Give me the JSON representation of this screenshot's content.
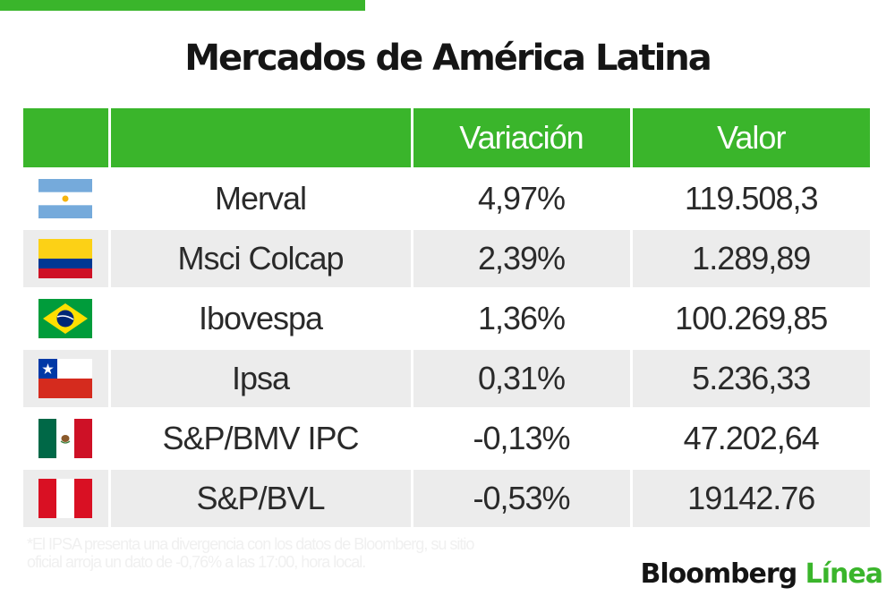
{
  "title": "Mercados de América Latina",
  "colors": {
    "accent": "#3ab52b",
    "row_alt": "#ececec"
  },
  "chart_data": {
    "type": "table",
    "title": "Mercados de América Latina",
    "columns": [
      "",
      "",
      "Variación",
      "Valor"
    ],
    "rows": [
      {
        "flag": "argentina-flag-icon",
        "name": "Merval",
        "variation": "4,97%",
        "value": "119.508,3"
      },
      {
        "flag": "colombia-flag-icon",
        "name": "Msci Colcap",
        "variation": "2,39%",
        "value": "1.289,89"
      },
      {
        "flag": "brazil-flag-icon",
        "name": "Ibovespa",
        "variation": "1,36%",
        "value": "100.269,85"
      },
      {
        "flag": "chile-flag-icon",
        "name": "Ipsa",
        "variation": "0,31%",
        "value": "5.236,33"
      },
      {
        "flag": "mexico-flag-icon",
        "name": "S&P/BMV IPC",
        "variation": "-0,13%",
        "value": "47.202,64"
      },
      {
        "flag": "peru-flag-icon",
        "name": "S&P/BVL",
        "variation": "-0,53%",
        "value": "19142.76"
      }
    ]
  },
  "footnote": "*El IPSA presenta una divergencia con los datos de Bloomberg, su sitio oficial arroja un dato de -0,76% a las 17:00, hora local.",
  "brand": {
    "part1": "Bloomberg",
    "part2": "Línea"
  }
}
